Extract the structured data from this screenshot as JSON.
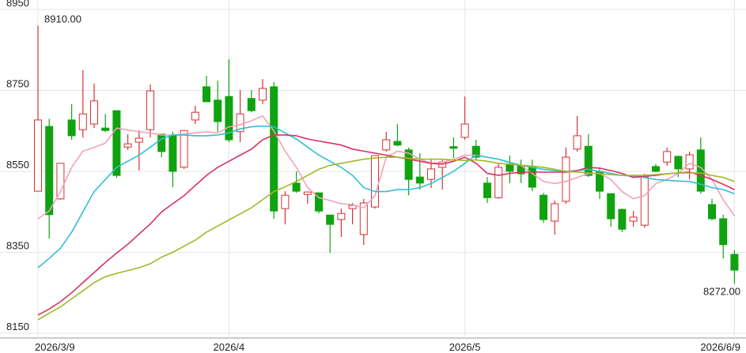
{
  "chart_data": {
    "type": "candlestick",
    "categories": [
      "2026/3/9",
      null,
      null,
      null,
      null,
      null,
      null,
      null,
      null,
      null,
      null,
      null,
      null,
      null,
      null,
      null,
      null,
      "2026/4",
      null,
      null,
      null,
      null,
      null,
      null,
      null,
      null,
      null,
      null,
      null,
      null,
      null,
      null,
      null,
      null,
      null,
      null,
      null,
      null,
      "2026/5",
      null,
      null,
      null,
      null,
      null,
      null,
      null,
      null,
      null,
      null,
      null,
      null,
      null,
      null,
      null,
      null,
      null,
      null,
      null,
      null,
      null,
      null,
      null,
      "2026/6/9"
    ],
    "open": [
      8501,
      8661,
      8482,
      8677,
      8653,
      8667,
      8657,
      8700,
      8610,
      8622,
      8653,
      8642,
      8638,
      8560,
      8677,
      8759,
      8726,
      8735,
      8648,
      8730,
      8726,
      8759,
      8458,
      8521,
      8493,
      8497,
      8442,
      8431,
      8458,
      8394,
      8462,
      8603,
      8624,
      8603,
      8536,
      8530,
      8560,
      8611,
      8634,
      8612,
      8521,
      8485,
      8566,
      8564,
      8560,
      8491,
      8427,
      8476,
      8605,
      8612,
      8550,
      8495,
      8456,
      8427,
      8417,
      8562,
      8573,
      8587,
      8556,
      8603,
      8468,
      8433,
      8345
    ],
    "high": [
      8910,
      8680,
      8570,
      8716,
      8800,
      8767,
      8692,
      8700,
      8642,
      8652,
      8765,
      8642,
      8648,
      8651,
      8712,
      8786,
      8774,
      8827,
      8751,
      8751,
      8778,
      8771,
      8501,
      8550,
      8500,
      8497,
      8442,
      8458,
      8472,
      8482,
      8589,
      8648,
      8667,
      8609,
      8595,
      8579,
      8579,
      8634,
      8735,
      8628,
      8536,
      8570,
      8589,
      8579,
      8579,
      8497,
      8478,
      8609,
      8687,
      8642,
      8560,
      8495,
      8458,
      8452,
      8544,
      8568,
      8609,
      8589,
      8599,
      8634,
      8482,
      8443,
      8355
    ],
    "low": [
      8500,
      8384,
      8480,
      8628,
      8634,
      8657,
      8647,
      8534,
      8603,
      8552,
      8634,
      8585,
      8511,
      8556,
      8667,
      8722,
      8648,
      8622,
      8622,
      8696,
      8716,
      8433,
      8419,
      8497,
      8470,
      8446,
      8349,
      8388,
      8419,
      8368,
      8458,
      8599,
      8612,
      8491,
      8505,
      8509,
      8505,
      8583,
      8628,
      8579,
      8472,
      8482,
      8521,
      8521,
      8501,
      8423,
      8394,
      8470,
      8599,
      8536,
      8482,
      8413,
      8400,
      8413,
      8411,
      8548,
      8564,
      8536,
      8530,
      8495,
      8429,
      8335,
      8272
    ],
    "close": [
      8677,
      8443,
      8570,
      8638,
      8692,
      8724,
      8651,
      8540,
      8618,
      8632,
      8749,
      8599,
      8550,
      8651,
      8696,
      8722,
      8673,
      8628,
      8692,
      8700,
      8755,
      8452,
      8491,
      8501,
      8499,
      8452,
      8419,
      8446,
      8466,
      8472,
      8589,
      8628,
      8615,
      8530,
      8521,
      8556,
      8573,
      8607,
      8667,
      8585,
      8485,
      8560,
      8550,
      8544,
      8511,
      8431,
      8470,
      8585,
      8638,
      8540,
      8501,
      8433,
      8407,
      8437,
      8536,
      8550,
      8599,
      8556,
      8591,
      8501,
      8433,
      8369,
      8306
    ],
    "up_color": "#d93030",
    "down_color": "#0fa30f",
    "lines": [
      {
        "color": "#f0a2bc",
        "values": [
          8433,
          8452,
          8500,
          8560,
          8600,
          8609,
          8620,
          8657,
          8652,
          8648,
          8645,
          8640,
          8640,
          8642,
          8645,
          8648,
          8645,
          8660,
          8665,
          8675,
          8687,
          8650,
          8600,
          8560,
          8510,
          8485,
          8478,
          8470,
          8468,
          8460,
          8490,
          8585,
          8600,
          8595,
          8580,
          8570,
          8572,
          8580,
          8590,
          8590,
          8585,
          8580,
          8572,
          8565,
          8545,
          8525,
          8520,
          8525,
          8535,
          8545,
          8545,
          8530,
          8500,
          8482,
          8490,
          8520,
          8530,
          8545,
          8570,
          8560,
          8530,
          8480,
          8440
        ]
      },
      {
        "color": "#2fc0d2",
        "values": [
          8312,
          8335,
          8360,
          8400,
          8450,
          8500,
          8530,
          8560,
          8575,
          8590,
          8610,
          8630,
          8640,
          8640,
          8638,
          8638,
          8640,
          8645,
          8655,
          8660,
          8662,
          8660,
          8645,
          8630,
          8610,
          8590,
          8575,
          8560,
          8540,
          8510,
          8500,
          8500,
          8505,
          8505,
          8510,
          8520,
          8535,
          8550,
          8570,
          8590,
          8585,
          8580,
          8572,
          8565,
          8560,
          8555,
          8552,
          8550,
          8552,
          8555,
          8550,
          8545,
          8540,
          8538,
          8535,
          8530,
          8528,
          8526,
          8525,
          8518,
          8510,
          8505,
          8495
        ]
      },
      {
        "color": "#d83262",
        "values": [
          8195,
          8210,
          8228,
          8250,
          8275,
          8300,
          8325,
          8348,
          8370,
          8395,
          8420,
          8450,
          8470,
          8490,
          8515,
          8540,
          8560,
          8575,
          8590,
          8605,
          8628,
          8640,
          8640,
          8638,
          8630,
          8625,
          8620,
          8615,
          8605,
          8600,
          8595,
          8590,
          8585,
          8580,
          8575,
          8570,
          8568,
          8575,
          8585,
          8570,
          8545,
          8540,
          8545,
          8548,
          8548,
          8548,
          8548,
          8548,
          8552,
          8560,
          8558,
          8552,
          8545,
          8535,
          8538,
          8540,
          8544,
          8546,
          8548,
          8540,
          8530,
          8518,
          8505
        ]
      },
      {
        "color": "#a2b82a",
        "values": [
          8183,
          8200,
          8215,
          8235,
          8255,
          8275,
          8290,
          8298,
          8305,
          8312,
          8322,
          8338,
          8350,
          8365,
          8380,
          8400,
          8415,
          8430,
          8445,
          8460,
          8480,
          8500,
          8512,
          8525,
          8540,
          8555,
          8565,
          8570,
          8575,
          8580,
          8583,
          8585,
          8585,
          8582,
          8580,
          8580,
          8580,
          8578,
          8577,
          8578,
          8575,
          8570,
          8568,
          8565,
          8563,
          8560,
          8555,
          8550,
          8548,
          8546,
          8544,
          8542,
          8540,
          8540,
          8540,
          8542,
          8544,
          8546,
          8546,
          8546,
          8540,
          8535,
          8525
        ]
      }
    ],
    "max_label": "8910.00",
    "min_label": "8272.00",
    "ylim": [
      8150,
      8950
    ],
    "yticks": [
      8150,
      8350,
      8550,
      8750,
      8950
    ],
    "grid": true
  }
}
